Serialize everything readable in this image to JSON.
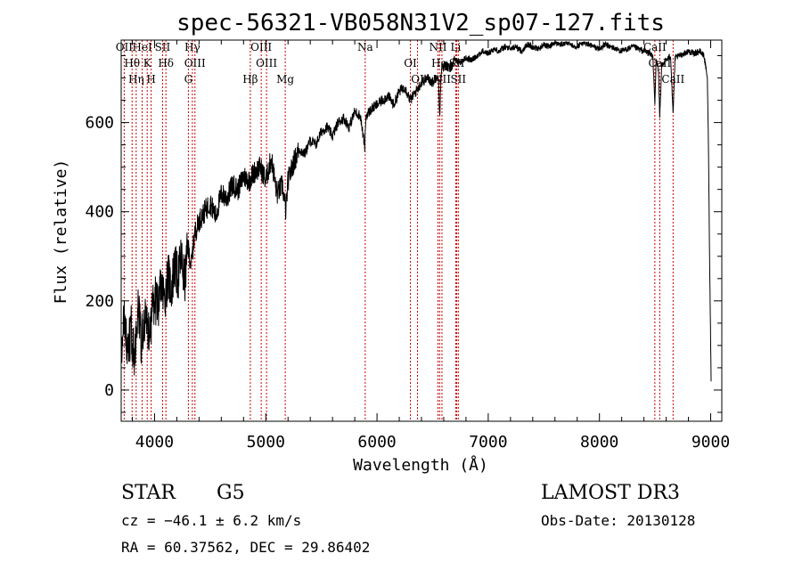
{
  "chart_data": {
    "type": "line",
    "title": "spec-56321-VB058N31V2_sp07-127.fits",
    "xlabel": "Wavelength (Å)",
    "ylabel": "Flux (relative)",
    "xlim": [
      3700,
      9100
    ],
    "ylim": [
      -70,
      785
    ],
    "xticks": [
      4000,
      5000,
      6000,
      7000,
      8000,
      9000
    ],
    "yticks": [
      0,
      200,
      400,
      600
    ],
    "xtick_labels": [
      "4000",
      "5000",
      "6000",
      "7000",
      "8000",
      "9000"
    ],
    "ytick_labels": [
      "0",
      "200",
      "400",
      "600"
    ],
    "series": [
      {
        "name": "spectrum",
        "x": [
          3700,
          3730,
          3760,
          3790,
          3820,
          3850,
          3880,
          3910,
          3940,
          3970,
          4000,
          4030,
          4060,
          4090,
          4120,
          4150,
          4180,
          4210,
          4240,
          4270,
          4300,
          4330,
          4360,
          4400,
          4450,
          4500,
          4550,
          4600,
          4650,
          4700,
          4750,
          4800,
          4850,
          4900,
          4950,
          5000,
          5050,
          5100,
          5150,
          5180,
          5200,
          5250,
          5300,
          5350,
          5400,
          5450,
          5500,
          5550,
          5600,
          5650,
          5700,
          5750,
          5800,
          5850,
          5890,
          5900,
          5950,
          6000,
          6050,
          6100,
          6150,
          6200,
          6250,
          6300,
          6350,
          6400,
          6450,
          6500,
          6550,
          6563,
          6580,
          6620,
          6650,
          6700,
          6750,
          6800,
          6850,
          6900,
          6950,
          7000,
          7050,
          7100,
          7150,
          7200,
          7250,
          7300,
          7350,
          7400,
          7450,
          7500,
          7550,
          7600,
          7650,
          7700,
          7750,
          7800,
          7850,
          7900,
          7950,
          8000,
          8050,
          8100,
          8150,
          8200,
          8250,
          8300,
          8350,
          8400,
          8450,
          8480,
          8498,
          8510,
          8530,
          8542,
          8560,
          8600,
          8640,
          8662,
          8680,
          8720,
          8760,
          8800,
          8850,
          8900,
          8940,
          8970,
          8980,
          8990,
          9000,
          9005
        ],
        "y": [
          100,
          170,
          80,
          140,
          60,
          190,
          110,
          160,
          130,
          150,
          210,
          180,
          240,
          200,
          260,
          225,
          280,
          250,
          300,
          240,
          320,
          280,
          350,
          380,
          400,
          420,
          390,
          440,
          430,
          460,
          450,
          480,
          470,
          490,
          500,
          470,
          520,
          440,
          460,
          400,
          470,
          510,
          540,
          530,
          560,
          550,
          580,
          590,
          570,
          600,
          610,
          590,
          625,
          615,
          545,
          615,
          630,
          640,
          650,
          660,
          640,
          670,
          680,
          650,
          670,
          690,
          700,
          690,
          710,
          615,
          720,
          730,
          720,
          740,
          735,
          745,
          740,
          750,
          760,
          755,
          765,
          760,
          770,
          765,
          770,
          760,
          775,
          770,
          765,
          775,
          770,
          780,
          775,
          780,
          775,
          770,
          780,
          775,
          770,
          765,
          775,
          770,
          765,
          760,
          765,
          770,
          765,
          760,
          755,
          750,
          640,
          740,
          720,
          610,
          730,
          740,
          750,
          620,
          745,
          750,
          755,
          760,
          755,
          760,
          750,
          700,
          550,
          300,
          100,
          0
        ]
      }
    ],
    "line_markers": [
      {
        "name": "OII",
        "wavelength": 3727
      },
      {
        "name": "Hθ",
        "wavelength": 3798
      },
      {
        "name": "Hη",
        "wavelength": 3835
      },
      {
        "name": "HeI",
        "wavelength": 3889
      },
      {
        "name": "K",
        "wavelength": 3934
      },
      {
        "name": "H",
        "wavelength": 3969
      },
      {
        "name": "SII",
        "wavelength": 4072
      },
      {
        "name": "Hδ",
        "wavelength": 4102
      },
      {
        "name": "G",
        "wavelength": 4304
      },
      {
        "name": "Hγ",
        "wavelength": 4340
      },
      {
        "name": "OIII",
        "wavelength": 4363
      },
      {
        "name": "Hβ",
        "wavelength": 4861
      },
      {
        "name": "OIII",
        "wavelength": 4959
      },
      {
        "name": "OIII",
        "wavelength": 5007
      },
      {
        "name": "Mg",
        "wavelength": 5175
      },
      {
        "name": "Na",
        "wavelength": 5894
      },
      {
        "name": "OI",
        "wavelength": 6300
      },
      {
        "name": "OI",
        "wavelength": 6364
      },
      {
        "name": "NII",
        "wavelength": 6548
      },
      {
        "name": "Hα",
        "wavelength": 6563
      },
      {
        "name": "NII",
        "wavelength": 6584
      },
      {
        "name": "Li",
        "wavelength": 6708
      },
      {
        "name": "SII",
        "wavelength": 6717
      },
      {
        "name": "SII",
        "wavelength": 6731
      },
      {
        "name": "CaII",
        "wavelength": 8498
      },
      {
        "name": "CaII",
        "wavelength": 8542
      },
      {
        "name": "CaII",
        "wavelength": 8662
      }
    ]
  },
  "info": {
    "class_label": "STAR",
    "subclass": "G5",
    "survey": "LAMOST DR3",
    "cz": "cz = −46.1 ± 6.2 km/s",
    "obs_date": "Obs-Date: 20130128",
    "coords": "RA =  60.37562, DEC =  29.86402"
  },
  "colors": {
    "spectrum": "#000000",
    "marker": "#cc0000",
    "axis": "#000000",
    "background": "#ffffff"
  }
}
